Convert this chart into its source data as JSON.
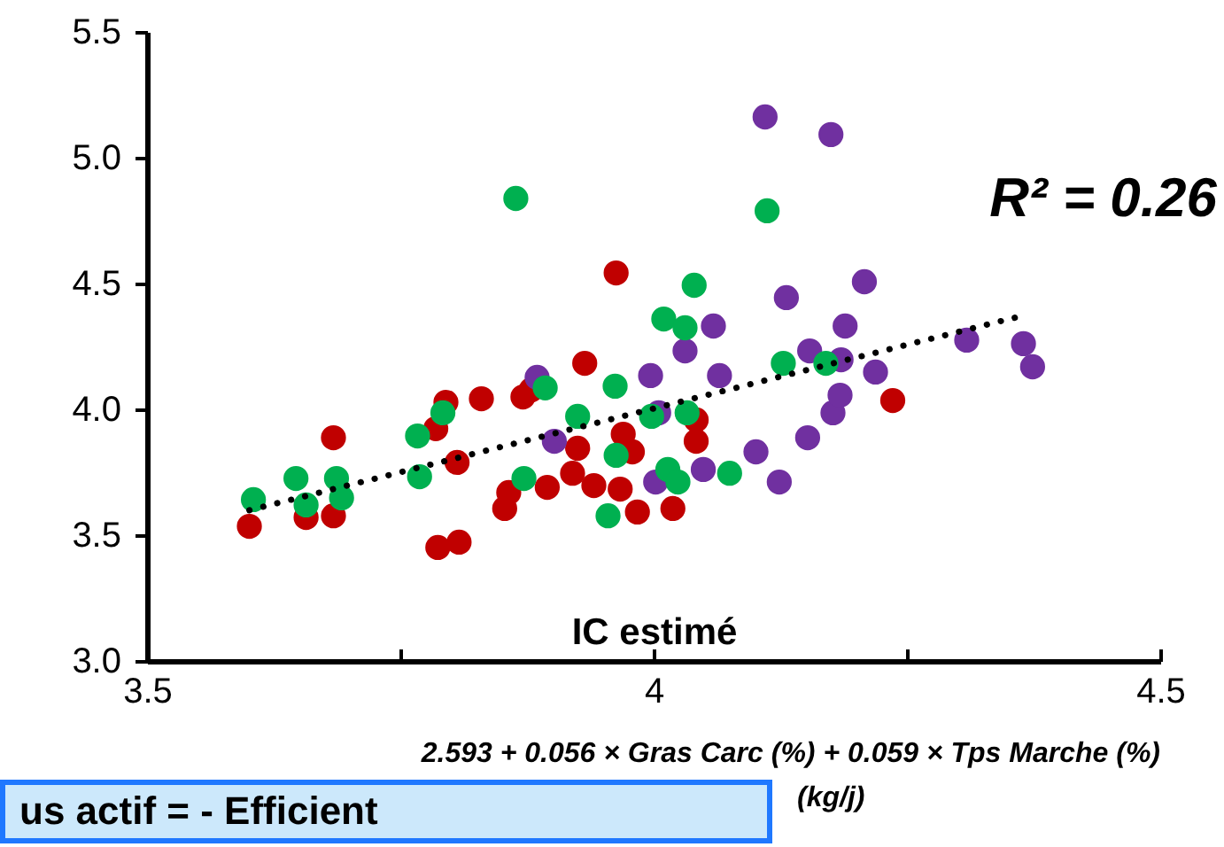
{
  "chart_data": {
    "type": "scatter",
    "xlabel": "IC estimé",
    "marker": "circle",
    "xlim": [
      3.5,
      4.5
    ],
    "xticks": [
      3.5,
      {
        "value": 3.75,
        "label": null
      },
      4,
      {
        "value": 4.25,
        "label": null
      },
      4.5
    ],
    "ylim": [
      3,
      5.5
    ],
    "yticks": [
      {
        "value": 3,
        "label": "3.0"
      },
      3.5,
      {
        "value": 4,
        "label": "4.0"
      },
      4.5,
      {
        "value": 5,
        "label": "5.0"
      },
      5.5
    ],
    "annotations": [
      "R² = 0.26",
      "2.593 + 0.056 × Gras Carc (%) + 0.059 × Tps Marche (%)",
      "(kg/j)",
      "us actif = - Efficient"
    ],
    "series": [
      {
        "color": "#c00000",
        "x": [
          3.601,
          3.657,
          3.684,
          3.684,
          3.785,
          3.795,
          3.787,
          3.808,
          3.806,
          3.83,
          3.853,
          3.857,
          3.871,
          3.879,
          3.895,
          3.92,
          3.925,
          3.932,
          3.941,
          3.963,
          3.967,
          3.97,
          3.979,
          3.984,
          4.019,
          4.042,
          4.042,
          4.236
        ],
        "values": [
          3.535,
          3.57,
          3.577,
          3.887,
          3.923,
          4.028,
          3.451,
          3.472,
          3.789,
          4.042,
          3.606,
          3.669,
          4.049,
          4.077,
          3.69,
          3.746,
          3.845,
          4.183,
          3.697,
          4.542,
          3.683,
          3.901,
          3.831,
          3.592,
          3.606,
          3.873,
          3.958,
          4.035
        ]
      },
      {
        "color": "#7030a0",
        "x": [
          3.885,
          3.902,
          3.997,
          4.005,
          4.002,
          4.031,
          4.049,
          4.059,
          4.065,
          4.101,
          4.11,
          4.124,
          4.131,
          4.152,
          4.154,
          4.175,
          4.177,
          4.184,
          4.185,
          4.189,
          4.208,
          4.219,
          4.309,
          4.365,
          4.374
        ],
        "values": [
          4.127,
          3.873,
          4.134,
          3.986,
          3.711,
          4.232,
          3.761,
          4.331,
          4.134,
          3.831,
          5.162,
          3.711,
          4.444,
          3.887,
          4.232,
          5.092,
          3.986,
          4.056,
          4.197,
          4.331,
          4.507,
          4.148,
          4.275,
          4.261,
          4.169
        ]
      },
      {
        "color": "#00b050",
        "x": [
          3.605,
          3.647,
          3.657,
          3.687,
          3.692,
          3.767,
          3.792,
          3.769,
          3.864,
          3.872,
          3.893,
          3.925,
          3.962,
          3.963,
          3.955,
          3.998,
          4.01,
          4.014,
          4.024,
          4.031,
          4.04,
          4.033,
          4.075,
          4.112,
          4.128,
          4.17
        ],
        "values": [
          3.641,
          3.725,
          3.62,
          3.725,
          3.648,
          3.894,
          3.986,
          3.732,
          4.838,
          3.725,
          4.085,
          3.972,
          4.092,
          3.817,
          3.577,
          3.972,
          4.359,
          3.761,
          3.711,
          4.324,
          4.493,
          3.986,
          3.746,
          4.789,
          4.183,
          4.183
        ]
      },
      {
        "type": "line",
        "color": "#000000",
        "line_style": "dotted",
        "marker": "none",
        "x": [
          3.601,
          4.365
        ],
        "values": [
          3.599,
          4.373
        ]
      }
    ]
  }
}
